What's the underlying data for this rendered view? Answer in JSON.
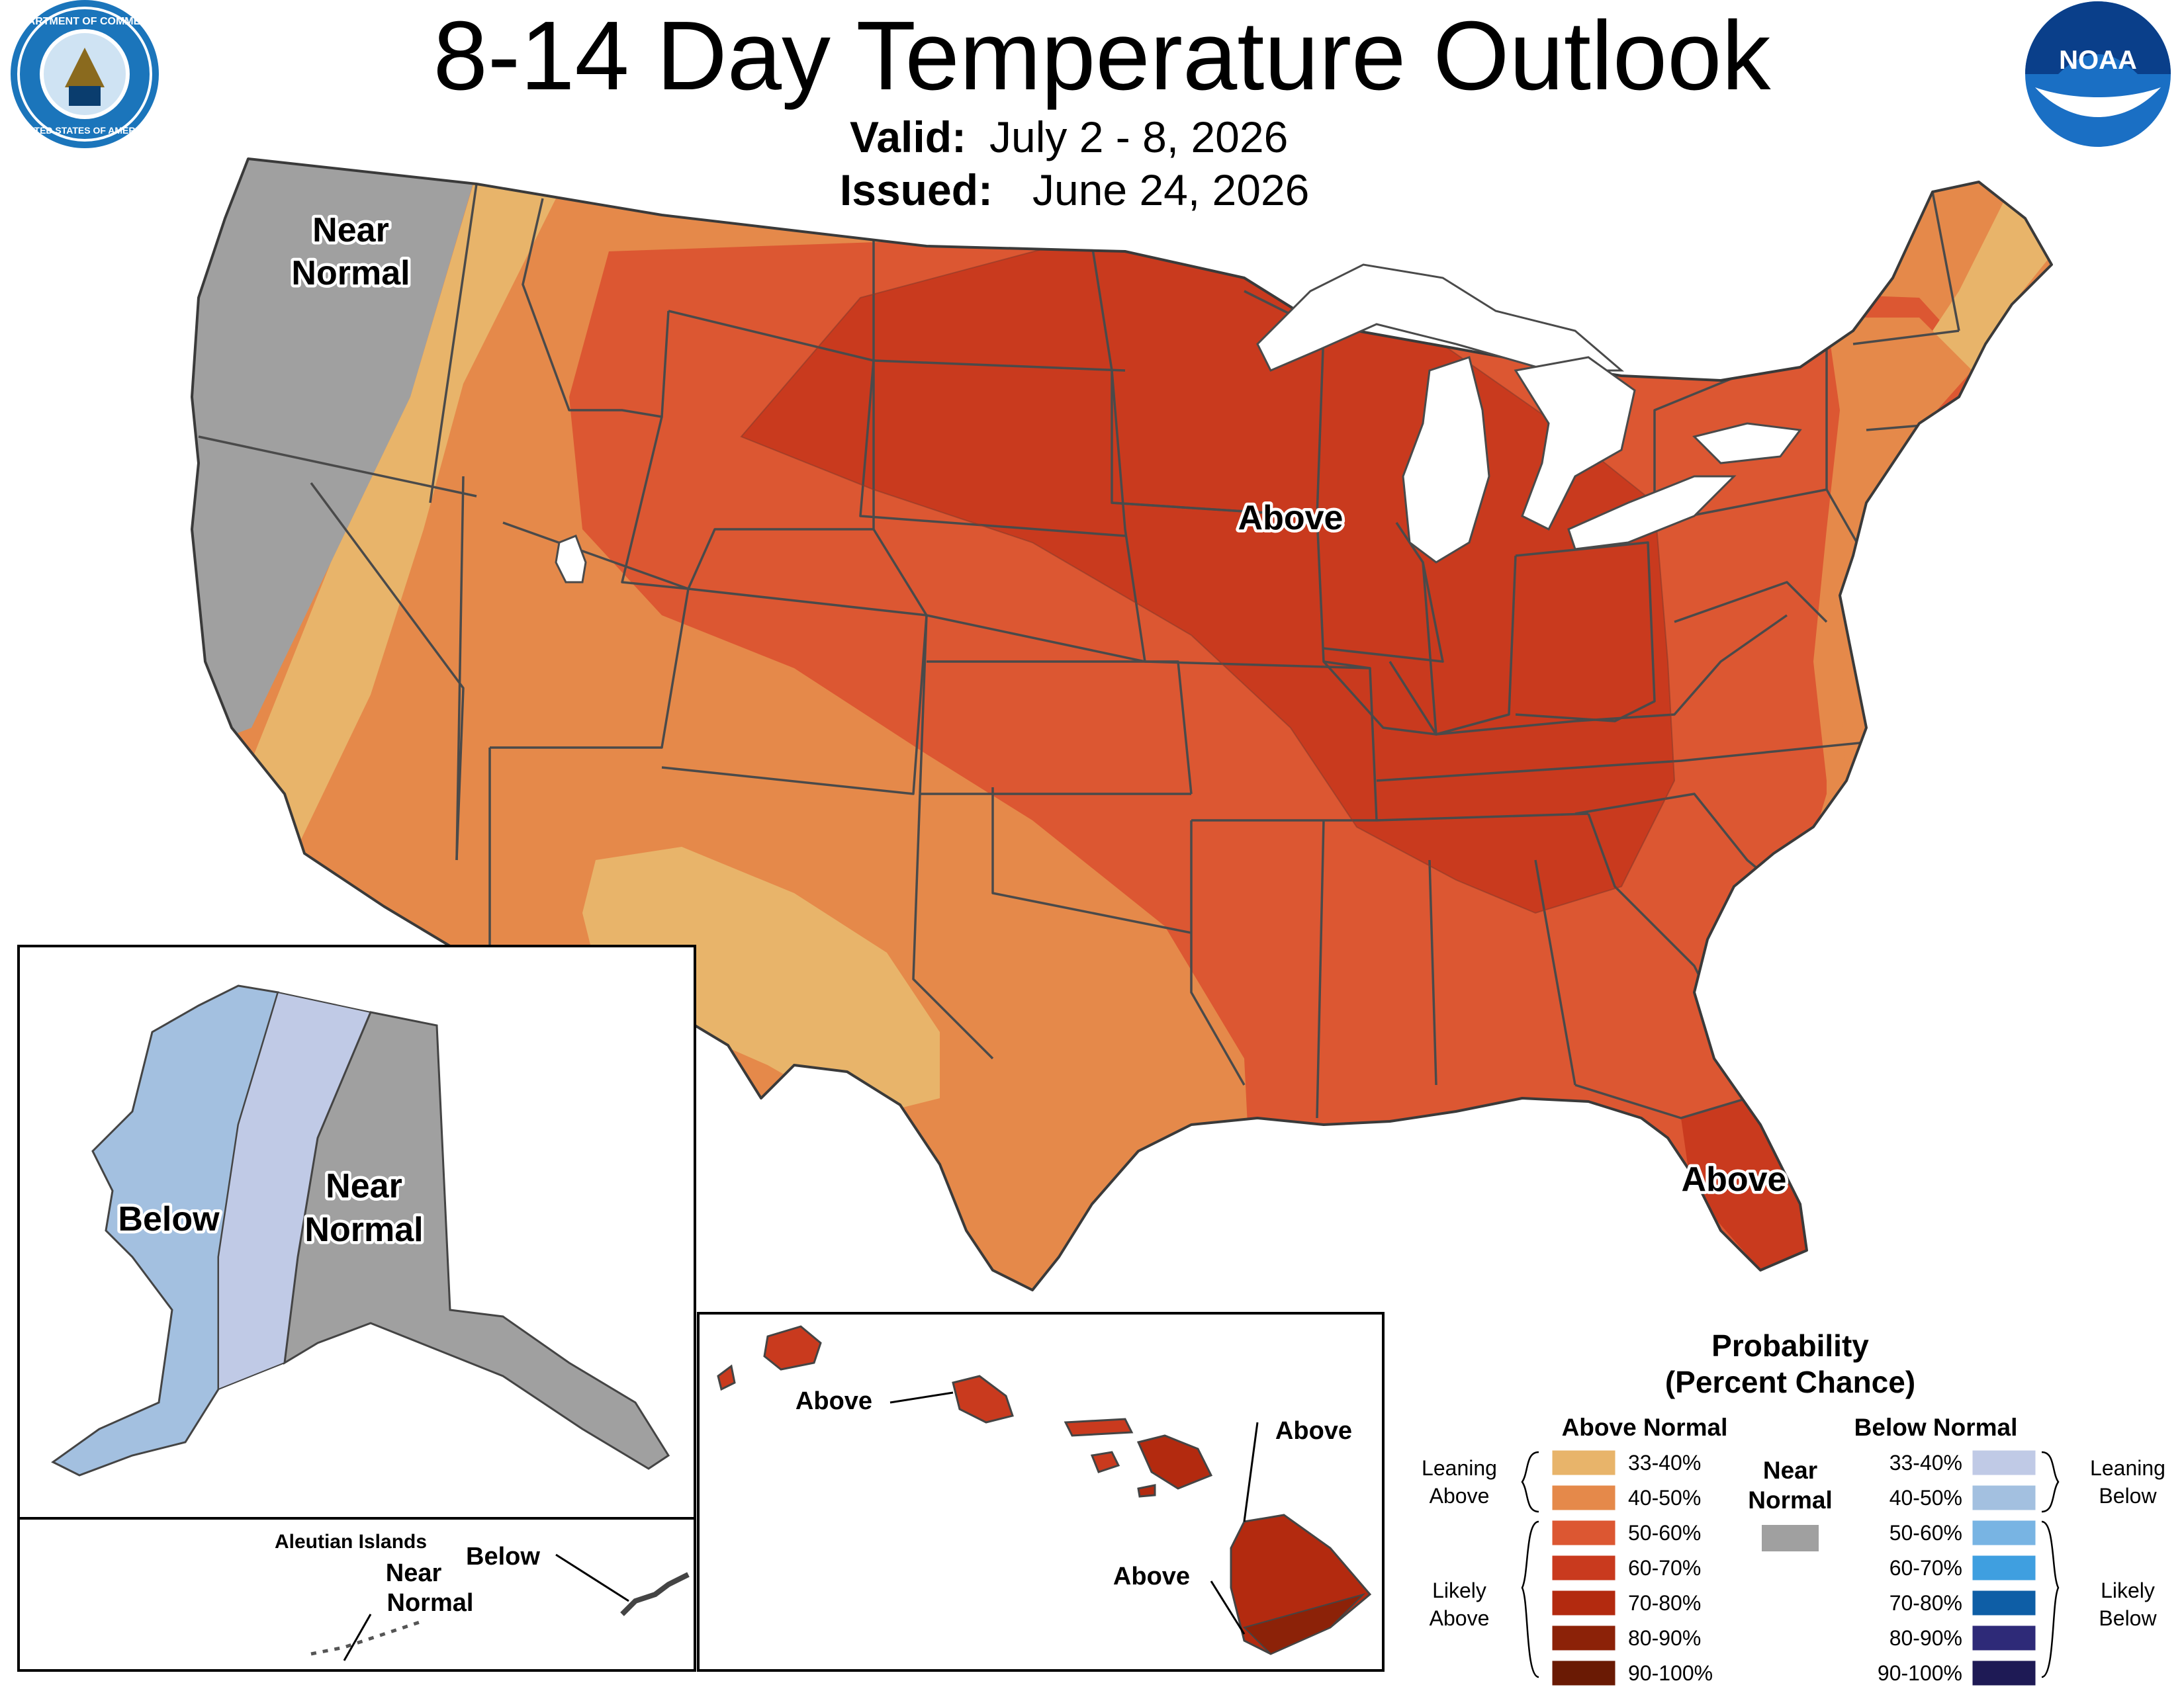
{
  "header": {
    "title": "8-14 Day Temperature Outlook",
    "valid_label": "Valid:",
    "valid_value": "July 2 - 8, 2026",
    "issued_label": "Issued:",
    "issued_value": "June 24, 2026"
  },
  "logos": {
    "commerce": "department-of-commerce-seal",
    "noaa": "noaa-logo",
    "noaa_text": "NOAA",
    "commerce_text_top": "DEPARTMENT OF COMMERCE",
    "commerce_text_bottom": "UNITED STATES OF AMERICA"
  },
  "labels": {
    "conus_near_normal_1": "Near",
    "conus_near_normal_2": "Normal",
    "conus_above_midwest": "Above",
    "conus_above_florida": "Above",
    "alaska_below": "Below",
    "alaska_near_normal_1": "Near",
    "alaska_near_normal_2": "Normal",
    "aleutian_title": "Aleutian Islands",
    "aleutian_below": "Below",
    "aleutian_near_1": "Near",
    "aleutian_near_2": "Normal",
    "hawaii_above_oahu": "Above",
    "hawaii_above_maui": "Above",
    "hawaii_above_big_island": "Above"
  },
  "legend": {
    "title_1": "Probability",
    "title_2": "(Percent Chance)",
    "above_header": "Above Normal",
    "below_header": "Below Normal",
    "near_1": "Near",
    "near_2": "Normal",
    "leaning_above_1": "Leaning",
    "leaning_above_2": "Above",
    "likely_above_1": "Likely",
    "likely_above_2": "Above",
    "leaning_below_1": "Leaning",
    "leaning_below_2": "Below",
    "likely_below_1": "Likely",
    "likely_below_2": "Below",
    "near_color": "#a0a0a0",
    "above": [
      {
        "range": "33-40%",
        "color": "#e8b46a"
      },
      {
        "range": "40-50%",
        "color": "#e5894a"
      },
      {
        "range": "50-60%",
        "color": "#dc5732"
      },
      {
        "range": "60-70%",
        "color": "#c93a1e"
      },
      {
        "range": "70-80%",
        "color": "#b32a0f"
      },
      {
        "range": "80-90%",
        "color": "#8c2208"
      },
      {
        "range": "90-100%",
        "color": "#6a1a04"
      }
    ],
    "below": [
      {
        "range": "33-40%",
        "color": "#c0cae6"
      },
      {
        "range": "40-50%",
        "color": "#a3c0e0"
      },
      {
        "range": "50-60%",
        "color": "#78b4e3"
      },
      {
        "range": "60-70%",
        "color": "#3f9fe0"
      },
      {
        "range": "70-80%",
        "color": "#0e5ea6"
      },
      {
        "range": "80-90%",
        "color": "#2e2a78"
      },
      {
        "range": "90-100%",
        "color": "#1e1a55"
      }
    ]
  }
}
